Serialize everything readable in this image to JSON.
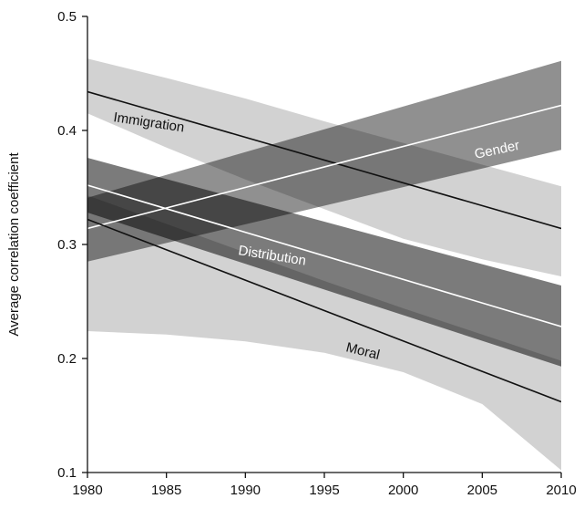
{
  "chart_data": {
    "type": "line",
    "ylabel": "Average correlation coefficient",
    "xlabel": "",
    "xlim": [
      1980,
      2010
    ],
    "ylim": [
      0.1,
      0.5
    ],
    "xticks": [
      1980,
      1985,
      1990,
      1995,
      2000,
      2005,
      2010
    ],
    "yticks": [
      0.1,
      0.2,
      0.3,
      0.4,
      0.5
    ],
    "xtick_labels": [
      "1980",
      "1985",
      "1990",
      "1995",
      "2000",
      "2005",
      "2010"
    ],
    "ytick_labels": [
      "0.1",
      "0.2",
      "0.3",
      "0.4",
      "0.5"
    ],
    "grid": false,
    "legend": "none",
    "series": [
      {
        "name": "Immigration",
        "line_color": "#111111",
        "band_color": "#d2d2d2",
        "x": [
          1980,
          2010
        ],
        "y": [
          0.434,
          0.314
        ],
        "band_x": [
          1980,
          1985,
          1990,
          1995,
          2000,
          2005,
          2010
        ],
        "band_upper": [
          0.463,
          0.446,
          0.428,
          0.408,
          0.389,
          0.37,
          0.351
        ],
        "band_lower": [
          0.415,
          0.385,
          0.357,
          0.331,
          0.305,
          0.287,
          0.272
        ]
      },
      {
        "name": "Gender",
        "line_color": "#ffffff",
        "band_color": "#909090",
        "x": [
          1980,
          2010
        ],
        "y": [
          0.314,
          0.422
        ],
        "band_x": [
          1980,
          2010
        ],
        "band_upper": [
          0.341,
          0.461
        ],
        "band_lower": [
          0.285,
          0.383
        ]
      },
      {
        "name": "Distribution",
        "line_color": "#ffffff",
        "band_color": "#7b7b7b",
        "x": [
          1980,
          2010
        ],
        "y": [
          0.352,
          0.228
        ],
        "band_x": [
          1980,
          2010
        ],
        "band_upper": [
          0.376,
          0.264
        ],
        "band_lower": [
          0.328,
          0.193
        ]
      },
      {
        "name": "Moral",
        "line_color": "#111111",
        "band_color": "#d2d2d2",
        "x": [
          1980,
          2010
        ],
        "y": [
          0.322,
          0.162
        ],
        "band_x": [
          1980,
          1985,
          1990,
          1995,
          2000,
          2005,
          2010
        ],
        "band_upper": [
          0.343,
          0.318,
          0.293,
          0.268,
          0.244,
          0.221,
          0.198
        ],
        "band_lower": [
          0.224,
          0.221,
          0.215,
          0.205,
          0.188,
          0.16,
          0.102
        ]
      }
    ],
    "series_labels": [
      "Immigration",
      "Gender",
      "Distribution",
      "Moral"
    ]
  }
}
